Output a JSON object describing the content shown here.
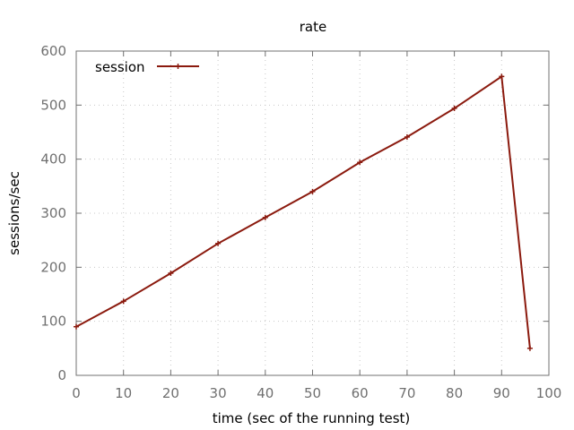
{
  "chart_data": {
    "type": "line",
    "title": "rate",
    "xlabel": "time (sec of the running test)",
    "ylabel": "sessions/sec",
    "xlim": [
      0,
      100
    ],
    "ylim": [
      0,
      600
    ],
    "xticks": [
      0,
      10,
      20,
      30,
      40,
      50,
      60,
      70,
      80,
      90,
      100
    ],
    "yticks": [
      0,
      100,
      200,
      300,
      400,
      500,
      600
    ],
    "grid": true,
    "legend_position": "top-left",
    "series": [
      {
        "name": "session",
        "color": "#8b1a0e",
        "marker": "plus",
        "x": [
          0,
          10,
          20,
          30,
          40,
          50,
          60,
          70,
          80,
          90,
          96
        ],
        "y": [
          90,
          137,
          189,
          244,
          292,
          340,
          394,
          441,
          494,
          553,
          50
        ]
      }
    ]
  }
}
